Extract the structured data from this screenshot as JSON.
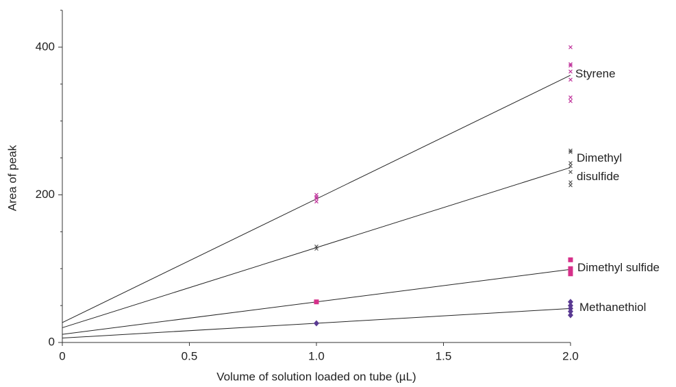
{
  "chart_data": {
    "type": "scatter",
    "x_label": "Volume of solution loaded on tube (µL)",
    "y_label": "Area of peak",
    "xlim": [
      0,
      2
    ],
    "xticks": [
      0,
      0.5,
      {
        "value": 1,
        "label": "1.0"
      },
      1.5,
      {
        "value": 2,
        "label": "2.0"
      }
    ],
    "ylim": [
      0,
      450
    ],
    "yticks": [
      0,
      200,
      400
    ],
    "yminor_ticks": [
      50,
      100,
      150,
      250,
      300,
      350,
      450
    ],
    "series": [
      {
        "name": "Styrene",
        "color": "#c0369c",
        "marker": "x",
        "x": [
          1,
          1,
          1,
          1,
          2,
          2,
          2,
          2,
          2,
          2,
          2
        ],
        "values": [
          200,
          197,
          195,
          191,
          400,
          377,
          375,
          367,
          356,
          332,
          327
        ],
        "fit_x": [
          0,
          2
        ],
        "fit_values": [
          27,
          362
        ]
      },
      {
        "name": "Dimethyl disulfide",
        "color": "#555555",
        "marker": "x",
        "x": [
          1,
          1,
          2,
          2,
          2,
          2,
          2,
          2,
          2
        ],
        "values": [
          130,
          127,
          260,
          258,
          243,
          239,
          231,
          217,
          213
        ],
        "fit_x": [
          0,
          2
        ],
        "fit_values": [
          20,
          237
        ]
      },
      {
        "name": "Dimethyl sulfide",
        "color": "#d6308a",
        "marker": "square",
        "x": [
          1,
          2,
          2,
          2,
          2,
          2
        ],
        "values": [
          55,
          112,
          100,
          97,
          95,
          93
        ],
        "fit_x": [
          0,
          2
        ],
        "fit_values": [
          11,
          99
        ]
      },
      {
        "name": "Methanethiol",
        "color": "#5a3a92",
        "marker": "diamond",
        "x": [
          1,
          2,
          2,
          2,
          2,
          2
        ],
        "values": [
          26,
          55,
          50,
          46,
          42,
          37
        ],
        "fit_x": [
          0,
          2
        ],
        "fit_values": [
          6,
          46
        ]
      }
    ]
  }
}
